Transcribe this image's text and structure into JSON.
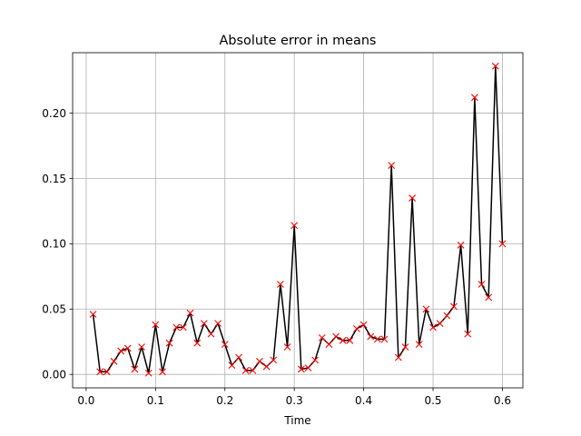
{
  "chart_data": {
    "type": "line",
    "title": "Absolute error in means",
    "xlabel": "Time",
    "ylabel": "",
    "xlim": [
      -0.0195,
      0.6295
    ],
    "ylim": [
      -0.0103,
      0.2463
    ],
    "xticks": [
      0.0,
      0.1,
      0.2,
      0.3,
      0.4,
      0.5,
      0.6
    ],
    "xtick_labels": [
      "0.0",
      "0.1",
      "0.2",
      "0.3",
      "0.4",
      "0.5",
      "0.6"
    ],
    "yticks": [
      0.0,
      0.05,
      0.1,
      0.15,
      0.2
    ],
    "ytick_labels": [
      "0.00",
      "0.05",
      "0.10",
      "0.15",
      "0.20"
    ],
    "grid": true,
    "line_color": "#000000",
    "marker_color": "#ff0000",
    "marker": "x",
    "series": [
      {
        "name": "",
        "x": [
          0.01,
          0.02,
          0.03,
          0.04,
          0.05,
          0.06,
          0.07,
          0.08,
          0.09,
          0.1,
          0.11,
          0.12,
          0.13,
          0.14,
          0.15,
          0.16,
          0.17,
          0.18,
          0.19,
          0.2,
          0.21,
          0.22,
          0.23,
          0.24,
          0.25,
          0.26,
          0.27,
          0.28,
          0.29,
          0.3,
          0.31,
          0.32,
          0.33,
          0.34,
          0.35,
          0.36,
          0.37,
          0.38,
          0.39,
          0.4,
          0.41,
          0.42,
          0.43,
          0.44,
          0.45,
          0.46,
          0.47,
          0.48,
          0.49,
          0.5,
          0.51,
          0.52,
          0.53,
          0.54,
          0.55,
          0.56,
          0.57,
          0.58,
          0.59,
          0.6
        ],
        "y": [
          0.046,
          0.002,
          0.002,
          0.01,
          0.018,
          0.02,
          0.004,
          0.021,
          0.001,
          0.038,
          0.002,
          0.024,
          0.036,
          0.036,
          0.047,
          0.024,
          0.039,
          0.031,
          0.039,
          0.023,
          0.007,
          0.013,
          0.003,
          0.003,
          0.01,
          0.006,
          0.011,
          0.069,
          0.021,
          0.114,
          0.004,
          0.005,
          0.011,
          0.028,
          0.023,
          0.029,
          0.026,
          0.026,
          0.035,
          0.038,
          0.029,
          0.027,
          0.027,
          0.16,
          0.013,
          0.021,
          0.135,
          0.023,
          0.05,
          0.036,
          0.039,
          0.045,
          0.052,
          0.099,
          0.031,
          0.212,
          0.069,
          0.059,
          0.236,
          0.1
        ]
      }
    ]
  }
}
